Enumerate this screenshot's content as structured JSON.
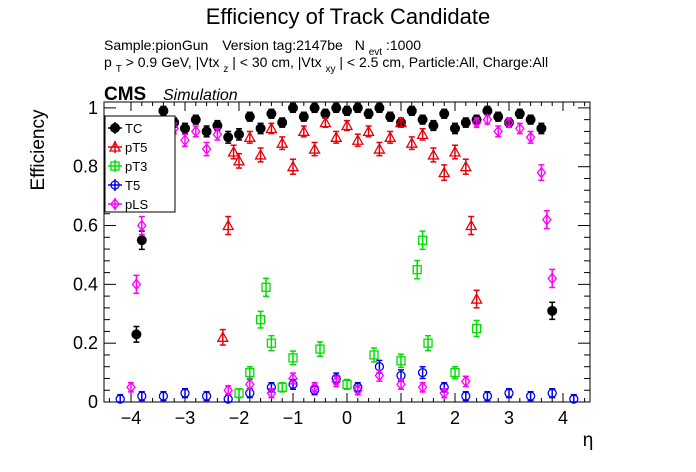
{
  "chart_data": {
    "type": "scatter",
    "title": "Efficiency of Track Candidate",
    "info_line1": {
      "sample": "Sample:pionGun",
      "version": "Version tag:2147be",
      "nevt_prefix": "N",
      "nevt_sub": "evt",
      "nevt_value": ":1000"
    },
    "info_line2": {
      "pt_prefix": "p",
      "pt_sub": "T",
      "pt_text": " > 0.9 GeV, |Vtx",
      "vtxz_sub": "z",
      "mid_text": "| < 30 cm, |Vtx",
      "vtxxy_sub": "xy",
      "end_text": "| < 2.5 cm, Particle:All, Charge:All"
    },
    "cms_label": "CMS",
    "cms_sublabel": "Simulation",
    "xlabel": "η",
    "ylabel": "Efficiency",
    "xlim": [
      -4.5,
      4.5
    ],
    "ylim": [
      0,
      1.02
    ],
    "x_ticks": [
      "−4",
      "−3",
      "−2",
      "−1",
      "0",
      "1",
      "2",
      "3",
      "4"
    ],
    "y_ticks": [
      "0",
      "0.2",
      "0.4",
      "0.6",
      "0.8",
      "1"
    ],
    "legend_position": "top-left",
    "series": [
      {
        "name": "TC",
        "color": "#000000",
        "marker": "filled-circle",
        "x": [
          -3.9,
          -3.8,
          -3.6,
          -3.4,
          -3.2,
          -3.0,
          -2.8,
          -2.6,
          -2.4,
          -2.2,
          -2.0,
          -1.8,
          -1.6,
          -1.4,
          -1.2,
          -1.0,
          -0.8,
          -0.6,
          -0.4,
          -0.2,
          0.0,
          0.2,
          0.4,
          0.6,
          0.8,
          1.0,
          1.2,
          1.4,
          1.6,
          1.8,
          2.0,
          2.2,
          2.4,
          2.6,
          2.8,
          3.0,
          3.2,
          3.4,
          3.6,
          3.8
        ],
        "y": [
          0.23,
          0.55,
          0.88,
          0.99,
          0.95,
          0.93,
          0.96,
          0.92,
          0.94,
          0.9,
          0.91,
          0.97,
          0.93,
          0.98,
          0.95,
          1.0,
          0.97,
          1.0,
          0.98,
          1.0,
          0.99,
          1.0,
          0.98,
          1.0,
          0.97,
          0.95,
          0.99,
          0.96,
          0.94,
          0.98,
          0.93,
          0.95,
          0.96,
          0.99,
          0.97,
          0.95,
          0.98,
          0.96,
          0.93,
          0.31
        ]
      },
      {
        "name": "pT5",
        "color": "#e8000b",
        "marker": "open-triangle",
        "x": [
          -2.3,
          -2.2,
          -2.1,
          -2.0,
          -1.8,
          -1.6,
          -1.4,
          -1.2,
          -1.0,
          -0.8,
          -0.6,
          -0.4,
          -0.2,
          0.0,
          0.2,
          0.4,
          0.6,
          0.8,
          1.0,
          1.2,
          1.4,
          1.6,
          1.8,
          2.0,
          2.2,
          2.3,
          2.4
        ],
        "y": [
          0.22,
          0.6,
          0.85,
          0.82,
          0.9,
          0.84,
          0.93,
          0.88,
          0.8,
          0.92,
          0.86,
          0.95,
          0.9,
          0.94,
          0.89,
          0.92,
          0.86,
          0.9,
          0.95,
          0.88,
          0.91,
          0.84,
          0.78,
          0.85,
          0.8,
          0.6,
          0.35
        ]
      },
      {
        "name": "pT3",
        "color": "#00dd00",
        "marker": "open-square",
        "x": [
          -2.0,
          -1.8,
          -1.6,
          -1.5,
          -1.4,
          -1.2,
          -1.0,
          -0.5,
          0.0,
          0.5,
          1.0,
          1.3,
          1.4,
          1.5,
          2.0,
          2.4
        ],
        "y": [
          0.03,
          0.1,
          0.28,
          0.39,
          0.2,
          0.05,
          0.15,
          0.18,
          0.06,
          0.16,
          0.14,
          0.45,
          0.55,
          0.2,
          0.1,
          0.25
        ]
      },
      {
        "name": "T5",
        "color": "#0000ee",
        "marker": "open-circle",
        "x": [
          -4.2,
          -3.8,
          -3.4,
          -3.0,
          -2.6,
          -2.2,
          -1.8,
          -1.4,
          -1.0,
          -0.6,
          -0.2,
          0.2,
          0.6,
          1.0,
          1.4,
          1.8,
          2.2,
          2.6,
          3.0,
          3.4,
          3.8,
          4.2
        ],
        "y": [
          0.01,
          0.02,
          0.02,
          0.03,
          0.02,
          0.01,
          0.03,
          0.05,
          0.06,
          0.04,
          0.08,
          0.05,
          0.12,
          0.09,
          0.1,
          0.05,
          0.02,
          0.02,
          0.03,
          0.02,
          0.03,
          0.01
        ]
      },
      {
        "name": "pLS",
        "color": "#ff00ff",
        "marker": "open-diamond",
        "x": [
          -4.0,
          -3.9,
          -3.8,
          -3.6,
          -3.4,
          -3.2,
          -3.0,
          -2.8,
          -2.6,
          -2.4,
          -2.2,
          -1.8,
          -1.4,
          -1.0,
          -0.6,
          -0.2,
          0.2,
          0.6,
          1.0,
          1.4,
          1.8,
          2.2,
          2.4,
          2.6,
          2.8,
          3.0,
          3.2,
          3.4,
          3.6,
          3.7,
          3.8
        ],
        "y": [
          0.05,
          0.4,
          0.6,
          0.92,
          0.95,
          0.93,
          0.89,
          0.92,
          0.86,
          0.91,
          0.04,
          0.06,
          0.03,
          0.08,
          0.05,
          0.07,
          0.04,
          0.09,
          0.06,
          0.05,
          0.03,
          0.07,
          0.95,
          0.96,
          0.92,
          0.95,
          0.93,
          0.9,
          0.78,
          0.62,
          0.42
        ]
      }
    ]
  }
}
